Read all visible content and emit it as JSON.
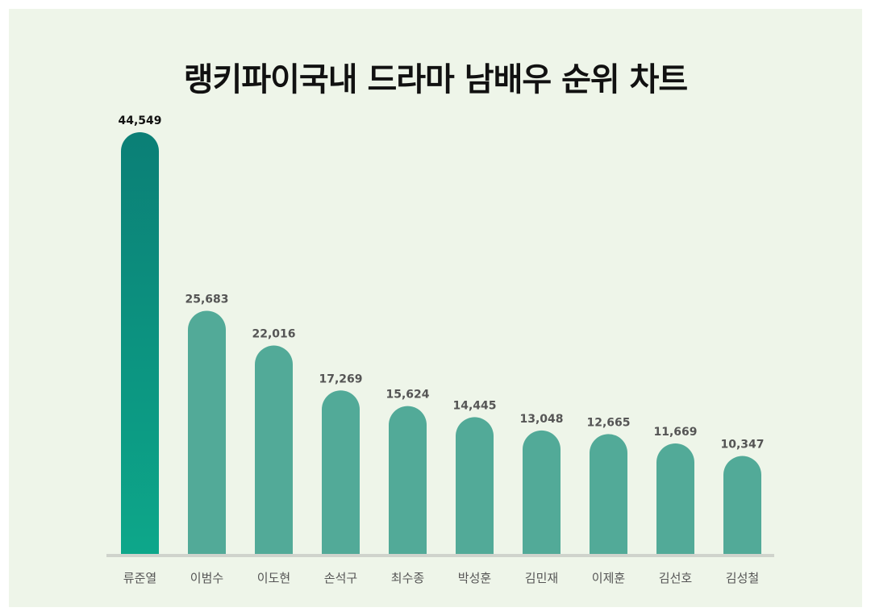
{
  "title": "랭키파이국내 드라마 남배우 순위 차트",
  "colors": {
    "background": "#eef5e9",
    "bar": "#52aa98",
    "top_bar_start": "#0b7f76",
    "top_bar_end": "#0da78a",
    "baseline": "#cfd3cc"
  },
  "chart_data": {
    "type": "bar",
    "title": "랭키파이국내 드라마 남배우 순위 차트",
    "categories": [
      "류준열",
      "이범수",
      "이도현",
      "손석구",
      "최수종",
      "박성훈",
      "김민재",
      "이제훈",
      "김선호",
      "김성철"
    ],
    "values": [
      44549,
      25683,
      22016,
      17269,
      15624,
      14445,
      13048,
      12665,
      11669,
      10347
    ],
    "value_labels": [
      "44,549",
      "25,683",
      "22,016",
      "17,269",
      "15,624",
      "14,445",
      "13,048",
      "12,665",
      "11,669",
      "10,347"
    ],
    "xlabel": "",
    "ylabel": "",
    "ylim": [
      0,
      44549
    ],
    "grid": false,
    "legend": "none"
  }
}
